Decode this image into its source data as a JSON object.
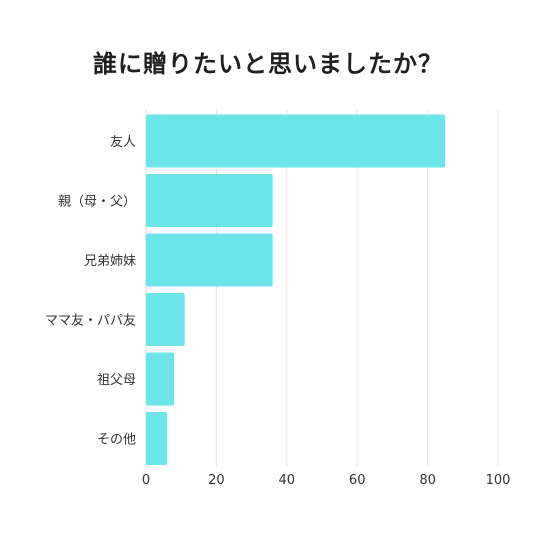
{
  "chart_data": {
    "type": "bar",
    "orientation": "horizontal",
    "title": "誰に贈りたいと思いましたか？",
    "categories": [
      "友人",
      "親（母・父）",
      "兄弟姉妹",
      "ママ友・パパ友",
      "祖父母",
      "その他"
    ],
    "values": [
      85,
      36,
      36,
      11,
      8,
      6
    ],
    "xlim": [
      0,
      100
    ],
    "xticks": [
      0,
      20,
      40,
      60,
      80,
      100
    ],
    "xlabel": "",
    "ylabel": "",
    "grid": true,
    "legend": "none",
    "bar_color": "#6ce5e8",
    "grid_color": "#e6e6e6"
  }
}
